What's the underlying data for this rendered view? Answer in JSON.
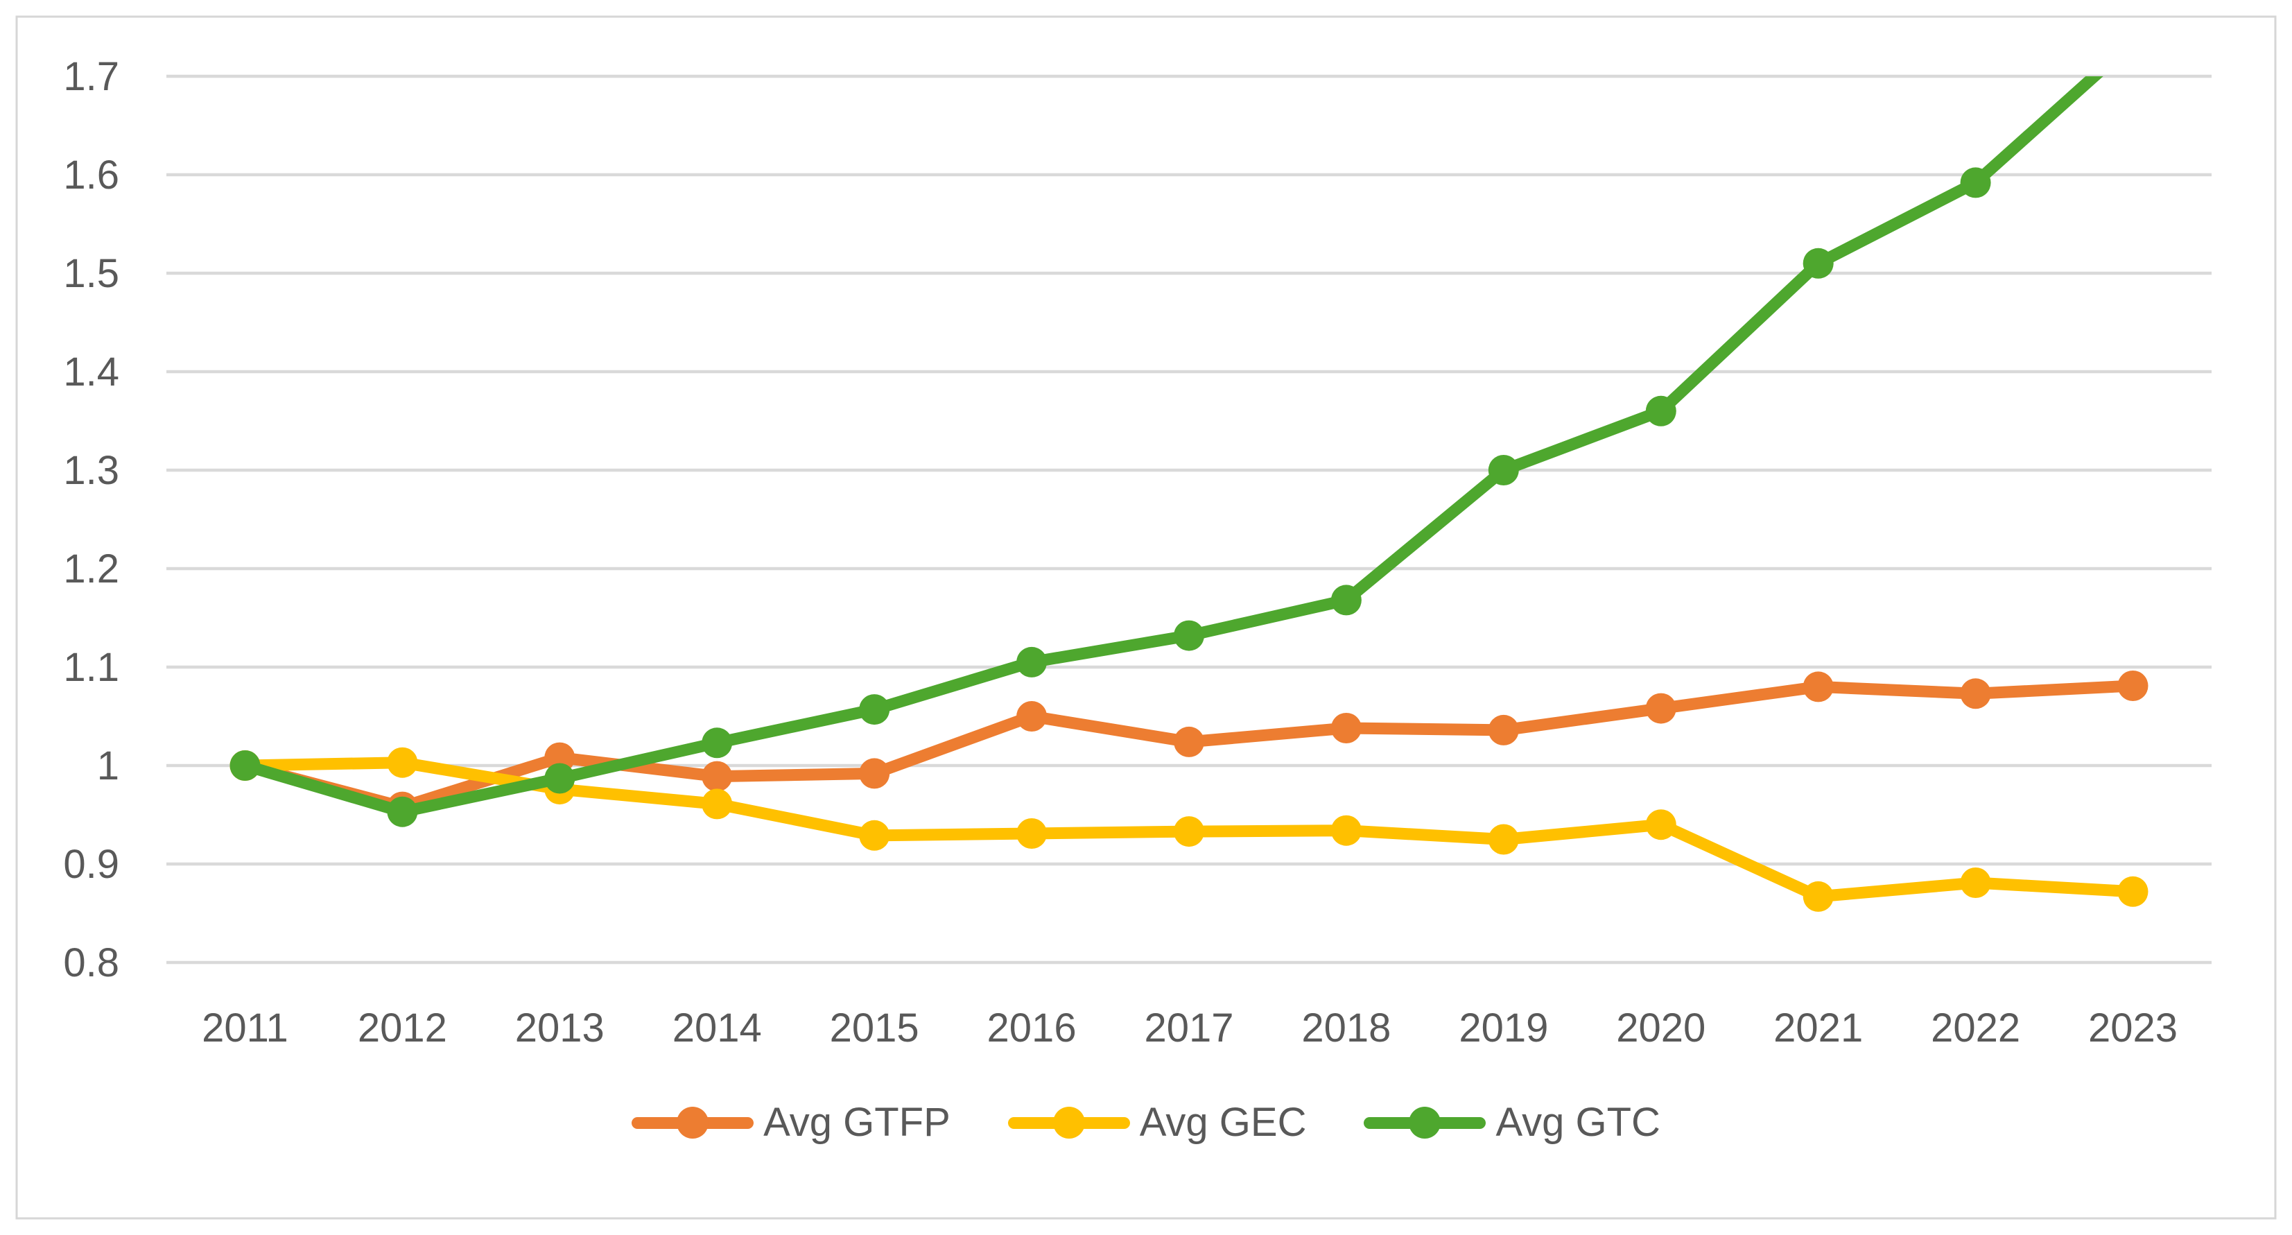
{
  "chart_data": {
    "type": "line",
    "title": "",
    "categories": [
      "2011",
      "2012",
      "2013",
      "2014",
      "2015",
      "2016",
      "2017",
      "2018",
      "2019",
      "2020",
      "2021",
      "2022",
      "2023"
    ],
    "series": [
      {
        "name": "Avg GTFP",
        "color": "#ED7D31",
        "values": [
          1.0,
          0.958,
          1.008,
          0.989,
          0.992,
          1.05,
          1.024,
          1.038,
          1.036,
          1.058,
          1.08,
          1.073,
          1.081
        ]
      },
      {
        "name": "Avg GEC",
        "color": "#FFC000",
        "values": [
          1.0,
          1.003,
          0.976,
          0.961,
          0.929,
          0.931,
          0.933,
          0.934,
          0.925,
          0.94,
          0.867,
          0.881,
          0.872
        ]
      },
      {
        "name": "Avg GTC",
        "color": "#4EA72E",
        "values": [
          1.0,
          0.953,
          0.987,
          1.023,
          1.057,
          1.105,
          1.132,
          1.168,
          1.3,
          1.36,
          1.51,
          1.592,
          1.735
        ]
      }
    ],
    "xlabel": "",
    "ylabel": "",
    "ylim": [
      0.8,
      1.7
    ],
    "y_axis": {
      "min": 0.8,
      "max": 1.7,
      "step": 0.1,
      "tick_labels": [
        "0.8",
        "0.9",
        "1",
        "1.1",
        "1.2",
        "1.3",
        "1.4",
        "1.5",
        "1.6",
        "1.7"
      ]
    },
    "grid": true,
    "series_clipped_at_ymax": "Avg GTC",
    "legend_position": "bottom",
    "colors": {
      "gridline": "#D9D9D9",
      "chart_border": "#D6D6D6",
      "tick_text": "#595959",
      "background": "#FFFFFF"
    }
  }
}
